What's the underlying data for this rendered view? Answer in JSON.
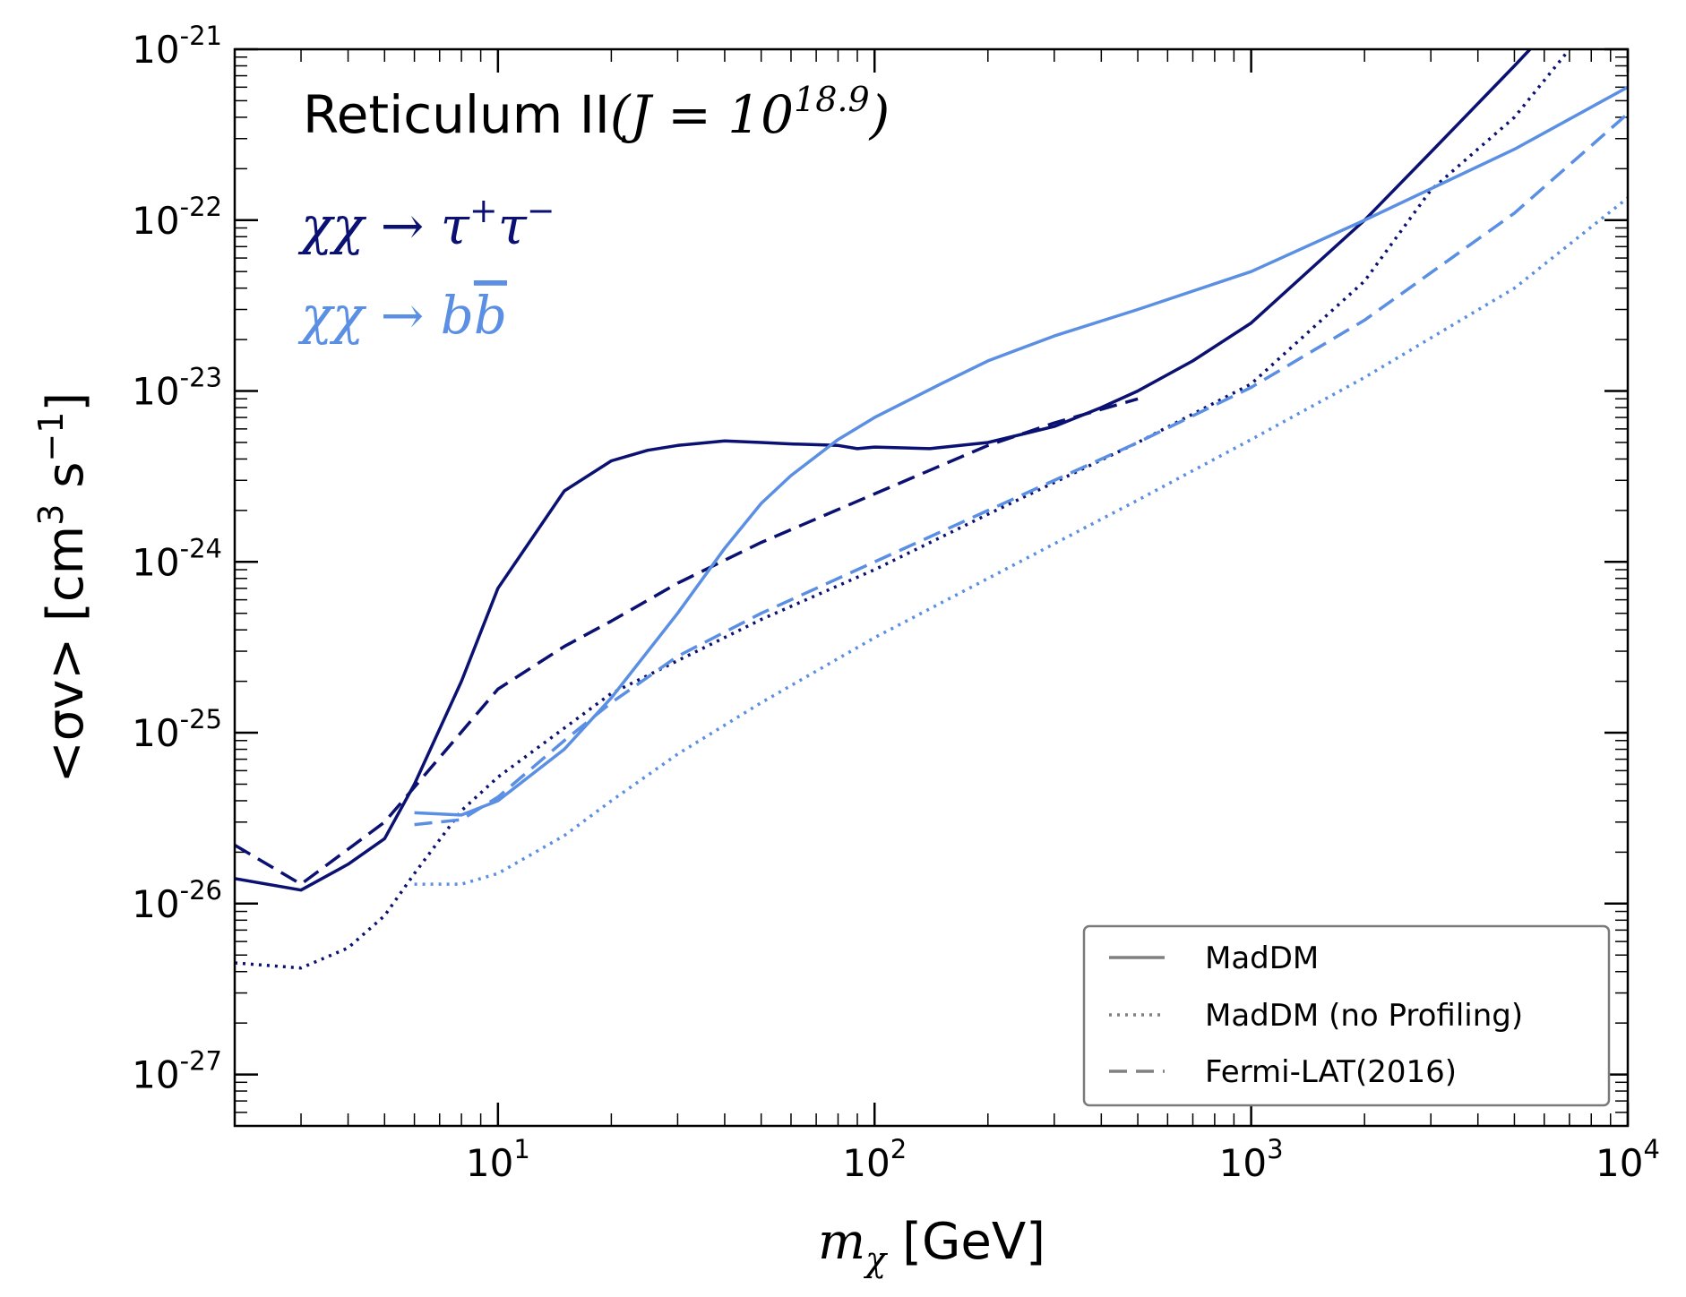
{
  "chart_data": {
    "type": "line",
    "title_main": "Reticulum II",
    "title_J_prefix": "(J = 10",
    "title_J_exp": "18.9",
    "title_J_suffix": ")",
    "channel_tau_text": "χχ → τ",
    "channel_tau_sup1": "+",
    "channel_tau_mid": "τ",
    "channel_tau_sup2": "−",
    "channel_b_text": "χχ → b",
    "channel_b_bar": "b",
    "xlabel_sym": "m",
    "xlabel_sub": "χ",
    "xlabel_unit": "[GeV]",
    "ylabel_main": "<σv> [cm",
    "ylabel_exp1": "3",
    "ylabel_mid": " s",
    "ylabel_exp2": "−1",
    "ylabel_end": "]",
    "xscale": "log",
    "yscale": "log",
    "xlim": [
      2,
      10000
    ],
    "ylim": [
      5e-28,
      1e-21
    ],
    "x_ticks": [
      {
        "base": "10",
        "exp": "1",
        "value": 10
      },
      {
        "base": "10",
        "exp": "2",
        "value": 100
      },
      {
        "base": "10",
        "exp": "3",
        "value": 1000
      },
      {
        "base": "10",
        "exp": "4",
        "value": 10000
      }
    ],
    "y_ticks": [
      {
        "base": "10",
        "exp": "-27",
        "value": 1e-27
      },
      {
        "base": "10",
        "exp": "-26",
        "value": 1e-26
      },
      {
        "base": "10",
        "exp": "-25",
        "value": 1e-25
      },
      {
        "base": "10",
        "exp": "-24",
        "value": 1e-24
      },
      {
        "base": "10",
        "exp": "-23",
        "value": 1e-23
      },
      {
        "base": "10",
        "exp": "-22",
        "value": 1e-22
      },
      {
        "base": "10",
        "exp": "-21",
        "value": 1e-21
      }
    ],
    "grid": false,
    "legend_position": "bottom-right",
    "colors": {
      "tau": "#0a1172",
      "bb": "#5b8fe3",
      "legend_line": "#808080"
    },
    "legend": [
      {
        "label": "MadDM",
        "style": "solid"
      },
      {
        "label": "MadDM (no Profiling)",
        "style": "dotted"
      },
      {
        "label": "Fermi-LAT(2016)",
        "style": "dashed"
      }
    ],
    "series": [
      {
        "channel": "tau",
        "style": "solid",
        "x": [
          2,
          3,
          4,
          5,
          6,
          8,
          10,
          15,
          20,
          25,
          30,
          40,
          50,
          60,
          80,
          90,
          100,
          140,
          200,
          300,
          400,
          500,
          700,
          1000,
          2000,
          3000,
          5000,
          5500
        ],
        "y": [
          1.4e-26,
          1.2e-26,
          1.7e-26,
          2.4e-26,
          5e-26,
          2e-25,
          7e-25,
          2.6e-24,
          3.9e-24,
          4.5e-24,
          4.8e-24,
          5.1e-24,
          5e-24,
          4.9e-24,
          4.8e-24,
          4.6e-24,
          4.7e-24,
          4.6e-24,
          5e-24,
          6.2e-24,
          8e-24,
          1e-23,
          1.5e-23,
          2.5e-23,
          1e-22,
          2.5e-22,
          8e-22,
          1e-21
        ]
      },
      {
        "channel": "tau",
        "style": "dotted",
        "x": [
          2,
          3,
          4,
          5,
          6,
          8,
          10,
          20,
          50,
          100,
          200,
          500,
          1000,
          2000,
          3000,
          5000,
          7000
        ],
        "y": [
          4.5e-27,
          4.2e-27,
          5.5e-27,
          8.5e-27,
          1.5e-26,
          3.5e-26,
          5.5e-26,
          1.7e-25,
          4.6e-25,
          9e-25,
          1.9e-24,
          5e-24,
          1.1e-23,
          4.4e-23,
          1.5e-22,
          4e-22,
          1e-21
        ]
      },
      {
        "channel": "tau",
        "style": "dashed",
        "x": [
          2,
          3,
          5,
          10,
          15,
          20,
          30,
          50,
          100,
          200,
          300,
          500
        ],
        "y": [
          2.2e-26,
          1.3e-26,
          3e-26,
          1.8e-25,
          3.2e-25,
          4.5e-25,
          7.5e-25,
          1.3e-24,
          2.5e-24,
          4.8e-24,
          6.5e-24,
          9e-24
        ]
      },
      {
        "channel": "bb",
        "style": "solid",
        "x": [
          6,
          8,
          10,
          15,
          20,
          30,
          40,
          50,
          60,
          80,
          100,
          150,
          200,
          300,
          500,
          1000,
          2000,
          5000,
          10000
        ],
        "y": [
          3.4e-26,
          3.3e-26,
          4e-26,
          8e-26,
          1.6e-25,
          5e-25,
          1.2e-24,
          2.2e-24,
          3.2e-24,
          5.2e-24,
          7e-24,
          1.1e-23,
          1.5e-23,
          2.1e-23,
          3e-23,
          5e-23,
          1e-22,
          2.6e-22,
          6e-22
        ]
      },
      {
        "channel": "bb",
        "style": "dotted",
        "x": [
          6,
          8,
          10,
          15,
          20,
          30,
          50,
          100,
          200,
          500,
          1000,
          2000,
          5000,
          10000
        ],
        "y": [
          1.3e-26,
          1.3e-26,
          1.5e-26,
          2.5e-26,
          4e-26,
          7.5e-26,
          1.5e-25,
          3.6e-25,
          8e-25,
          2.3e-24,
          5.2e-24,
          1.2e-23,
          4e-23,
          1.35e-22
        ]
      },
      {
        "channel": "bb",
        "style": "dashed",
        "x": [
          6,
          8,
          10,
          15,
          20,
          30,
          50,
          100,
          200,
          500,
          1000,
          2000,
          5000,
          10000
        ],
        "y": [
          2.9e-26,
          3.1e-26,
          4.2e-26,
          9e-26,
          1.5e-25,
          2.8e-25,
          5e-25,
          1e-24,
          2e-24,
          5e-24,
          1.05e-23,
          2.6e-23,
          1.1e-22,
          4.2e-22
        ]
      }
    ]
  }
}
